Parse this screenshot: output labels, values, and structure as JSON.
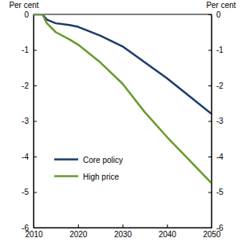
{
  "chart_data": {
    "type": "line",
    "ylabel": "Per cent",
    "x": [
      2010,
      2012,
      2013,
      2015,
      2018,
      2020,
      2025,
      2030,
      2035,
      2040,
      2045,
      2050
    ],
    "series": [
      {
        "name": "Core policy",
        "color": "#1b3c68",
        "values": [
          0,
          0,
          -0.15,
          -0.25,
          -0.3,
          -0.35,
          -0.6,
          -0.9,
          -1.35,
          -1.8,
          -2.3,
          -2.8
        ]
      },
      {
        "name": "High price",
        "color": "#6a9a2c",
        "values": [
          0,
          0,
          -0.25,
          -0.5,
          -0.7,
          -0.85,
          -1.35,
          -1.95,
          -2.75,
          -3.45,
          -4.1,
          -4.75
        ]
      }
    ],
    "xlim": [
      2010,
      2050
    ],
    "xticks": [
      2010,
      2020,
      2030,
      2040,
      2050
    ],
    "ylim": [
      -6,
      0
    ],
    "yticks": [
      0,
      -1,
      -2,
      -3,
      -4,
      -5,
      -6
    ],
    "grid": false,
    "legend": "left"
  }
}
